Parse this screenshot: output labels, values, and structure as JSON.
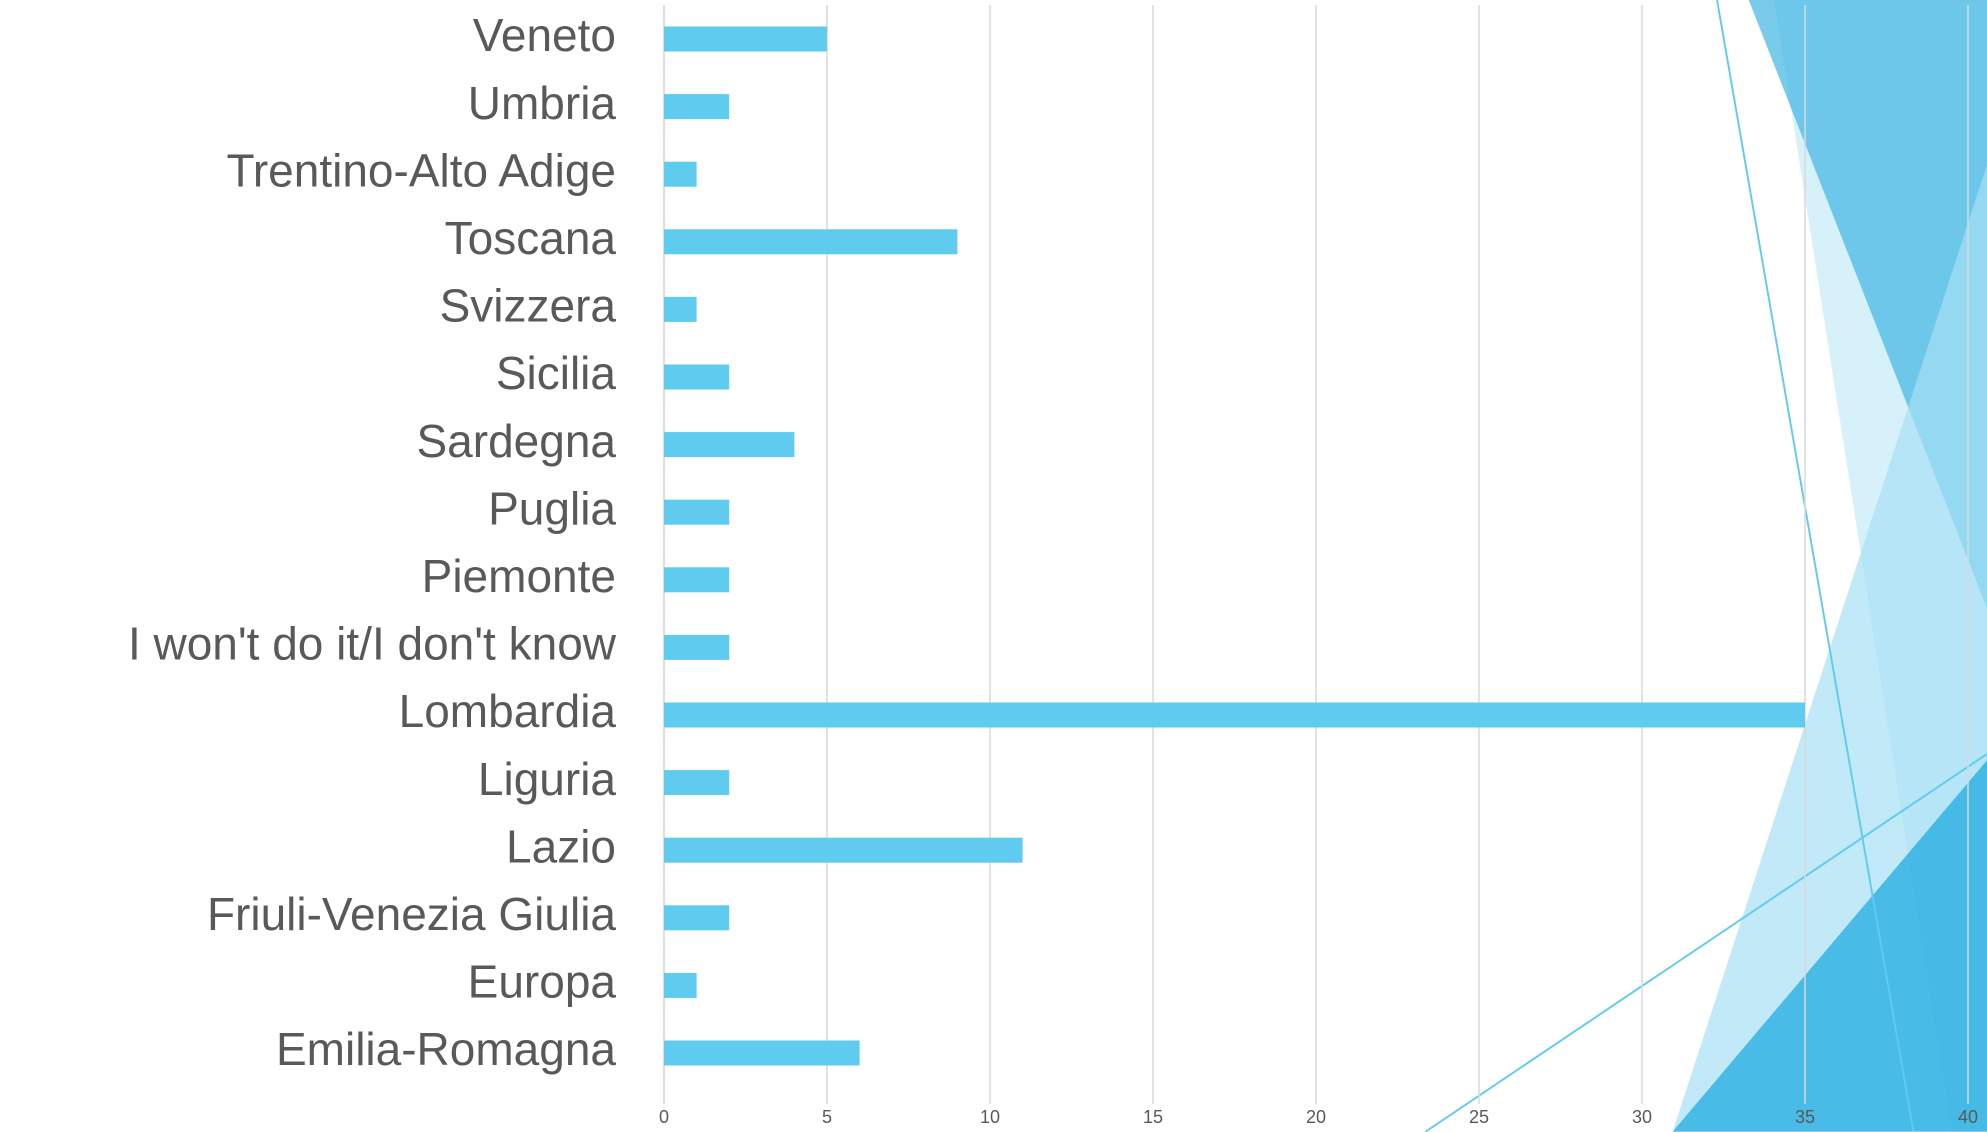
{
  "chart_data": {
    "type": "bar",
    "orientation": "horizontal",
    "categories": [
      "Veneto",
      "Umbria",
      "Trentino-Alto Adige",
      "Toscana",
      "Svizzera",
      "Sicilia",
      "Sardegna",
      "Puglia",
      "Piemonte",
      "I won't do it/I don't know",
      "Lombardia",
      "Liguria",
      "Lazio",
      "Friuli-Venezia Giulia",
      "Europa",
      "Emilia-Romagna"
    ],
    "values": [
      5,
      2,
      1,
      9,
      1,
      2,
      4,
      2,
      2,
      2,
      35,
      2,
      11,
      2,
      1,
      6
    ],
    "color": "#5ecbef",
    "xlim": [
      0,
      40
    ],
    "xticks": [
      0,
      5,
      10,
      15,
      20,
      25,
      30,
      35,
      40
    ],
    "grid": true
  }
}
